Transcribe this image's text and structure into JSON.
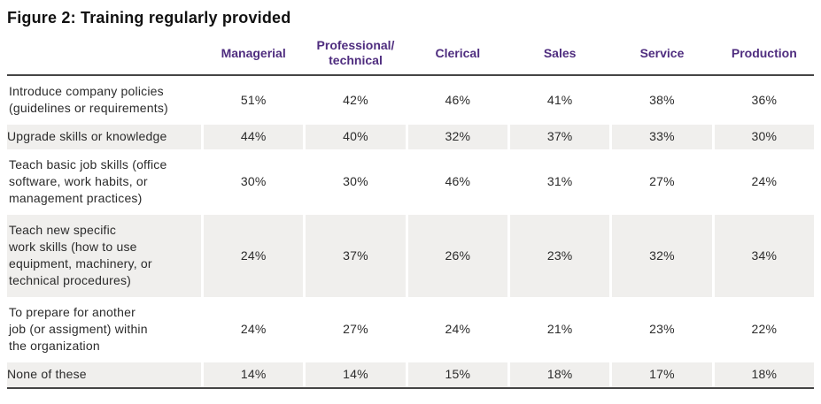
{
  "title": "Figure 2: Training regularly provided",
  "colors": {
    "header_purple": "#4f2d7f",
    "row_shade": "#f0efed",
    "rule_dark": "#454545",
    "body_text": "#2b2b2b",
    "title_text": "#111111"
  },
  "table": {
    "column_headers": [
      "Managerial",
      "Professional/\ntechnical",
      "Clerical",
      "Sales",
      "Service",
      "Production"
    ],
    "rows": [
      {
        "label": "Introduce company policies\n(guidelines or requirements)",
        "values": [
          "51%",
          "42%",
          "46%",
          "41%",
          "38%",
          "36%"
        ],
        "shaded": false
      },
      {
        "label": "Upgrade skills or knowledge",
        "values": [
          "44%",
          "40%",
          "32%",
          "37%",
          "33%",
          "30%"
        ],
        "shaded": true
      },
      {
        "label": "Teach basic job skills (office\nsoftware, work habits, or\nmanagement practices)",
        "values": [
          "30%",
          "30%",
          "46%",
          "31%",
          "27%",
          "24%"
        ],
        "shaded": false
      },
      {
        "label": "Teach new specific\nwork skills (how to use\nequipment, machinery, or\ntechnical procedures)",
        "values": [
          "24%",
          "37%",
          "26%",
          "23%",
          "32%",
          "34%"
        ],
        "shaded": true
      },
      {
        "label": "To prepare for another\njob (or assigment) within\nthe organization",
        "values": [
          "24%",
          "27%",
          "24%",
          "21%",
          "23%",
          "22%"
        ],
        "shaded": false
      },
      {
        "label": "None of these",
        "values": [
          "14%",
          "14%",
          "15%",
          "18%",
          "17%",
          "18%"
        ],
        "shaded": true
      }
    ]
  },
  "chart_data": {
    "type": "table",
    "title": "Figure 2: Training regularly provided",
    "columns": [
      "Managerial",
      "Professional/technical",
      "Clerical",
      "Sales",
      "Service",
      "Production"
    ],
    "unit": "percent",
    "rows": [
      {
        "label": "Introduce company policies (guidelines or requirements)",
        "values": [
          51,
          42,
          46,
          41,
          38,
          36
        ]
      },
      {
        "label": "Upgrade skills or knowledge",
        "values": [
          44,
          40,
          32,
          37,
          33,
          30
        ]
      },
      {
        "label": "Teach basic job skills (office software, work habits, or management practices)",
        "values": [
          30,
          30,
          46,
          31,
          27,
          24
        ]
      },
      {
        "label": "Teach new specific work skills (how to use equipment, machinery, or technical procedures)",
        "values": [
          24,
          37,
          26,
          23,
          32,
          34
        ]
      },
      {
        "label": "To prepare for another job (or assigment) within the organization",
        "values": [
          24,
          27,
          24,
          21,
          23,
          22
        ]
      },
      {
        "label": "None of these",
        "values": [
          14,
          14,
          15,
          18,
          17,
          18
        ]
      }
    ]
  }
}
